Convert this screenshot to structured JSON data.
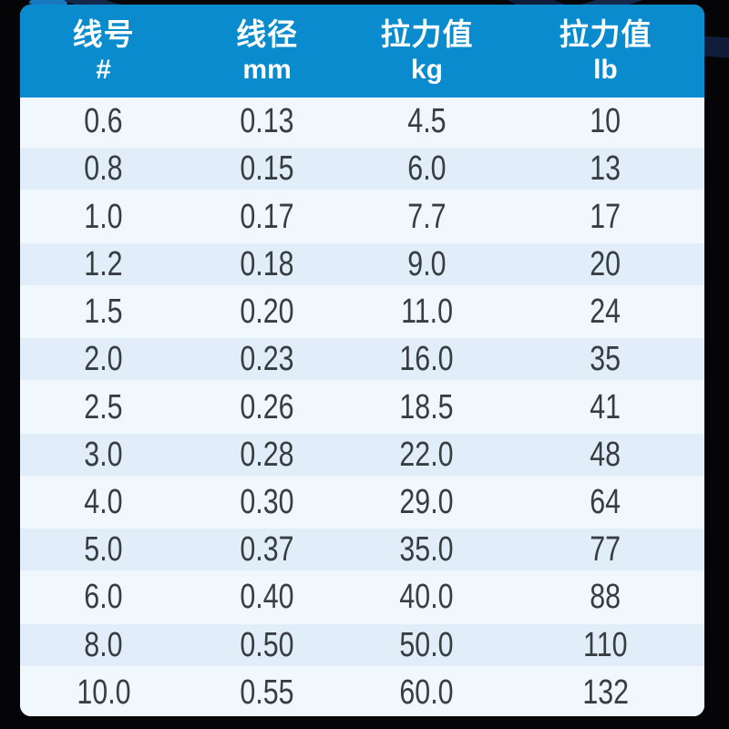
{
  "colors": {
    "background": "#050507",
    "header_blue": "#0a8bce",
    "row_light": "#f1f8fd",
    "row_alt": "#e1eefa",
    "text_dark": "#383d42",
    "header_text": "#ffffff",
    "photo_navy": "#16294d",
    "photo_blue": "#1778bf"
  },
  "table": {
    "headers": [
      {
        "label": "线号",
        "unit": "#"
      },
      {
        "label": "线径",
        "unit": "mm"
      },
      {
        "label": "拉力值",
        "unit": "kg"
      },
      {
        "label": "拉力值",
        "unit": "lb"
      }
    ],
    "rows": [
      [
        "0.6",
        "0.13",
        "4.5",
        "10"
      ],
      [
        "0.8",
        "0.15",
        "6.0",
        "13"
      ],
      [
        "1.0",
        "0.17",
        "7.7",
        "17"
      ],
      [
        "1.2",
        "0.18",
        "9.0",
        "20"
      ],
      [
        "1.5",
        "0.20",
        "11.0",
        "24"
      ],
      [
        "2.0",
        "0.23",
        "16.0",
        "35"
      ],
      [
        "2.5",
        "0.26",
        "18.5",
        "41"
      ],
      [
        "3.0",
        "0.28",
        "22.0",
        "48"
      ],
      [
        "4.0",
        "0.30",
        "29.0",
        "64"
      ],
      [
        "5.0",
        "0.37",
        "35.0",
        "77"
      ],
      [
        "6.0",
        "0.40",
        "40.0",
        "88"
      ],
      [
        "8.0",
        "0.50",
        "50.0",
        "110"
      ],
      [
        "10.0",
        "0.55",
        "60.0",
        "132"
      ]
    ]
  }
}
